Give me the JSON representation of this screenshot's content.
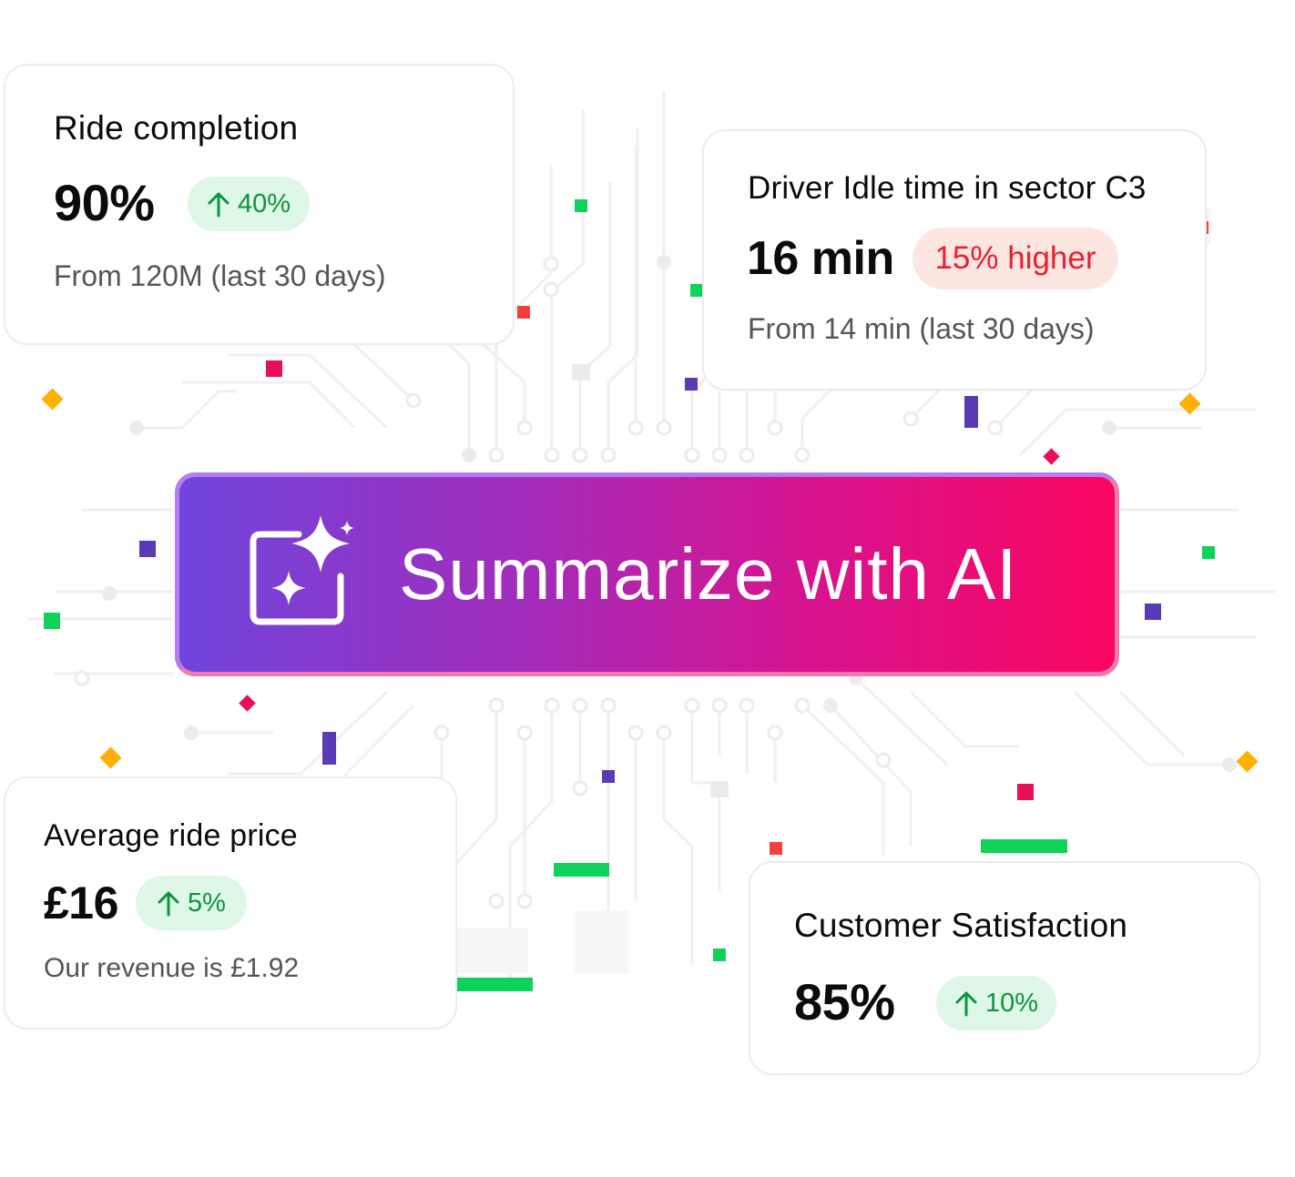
{
  "colors": {
    "green": "#0fd25a",
    "red": "#f0413a",
    "crimson": "#e80e5a",
    "purple": "#5a3bb5",
    "yellow": "#ffb000",
    "positive_text": "#0d9440",
    "positive_bg": "#dff7e6",
    "negative_text": "#e5222d",
    "negative_bg": "#fde6e2",
    "button_gradient": [
      "#6f45dd",
      "#a42cb9",
      "#d8138e",
      "#f9065f"
    ]
  },
  "ride_completion": {
    "title": "Ride completion",
    "value": "90%",
    "change": "40%",
    "change_icon": "arrow-up-icon",
    "subtitle": "From 120M (last 30 days)"
  },
  "driver_idle": {
    "title": "Driver Idle time in sector C3",
    "value": "16 min",
    "change": "15% higher",
    "subtitle": "From 14 min (last 30 days)"
  },
  "ai_button": {
    "label": "Summarize with AI",
    "icon": "ai-sparkle-icon"
  },
  "avg_ride_price": {
    "title": "Average ride price",
    "value": "£16",
    "change": "5%",
    "change_icon": "arrow-up-icon",
    "subtitle": "Our revenue is £1.92"
  },
  "customer_satisfaction": {
    "title": "Customer Satisfaction",
    "value": "85%",
    "change": "10%",
    "change_icon": "arrow-up-icon"
  }
}
